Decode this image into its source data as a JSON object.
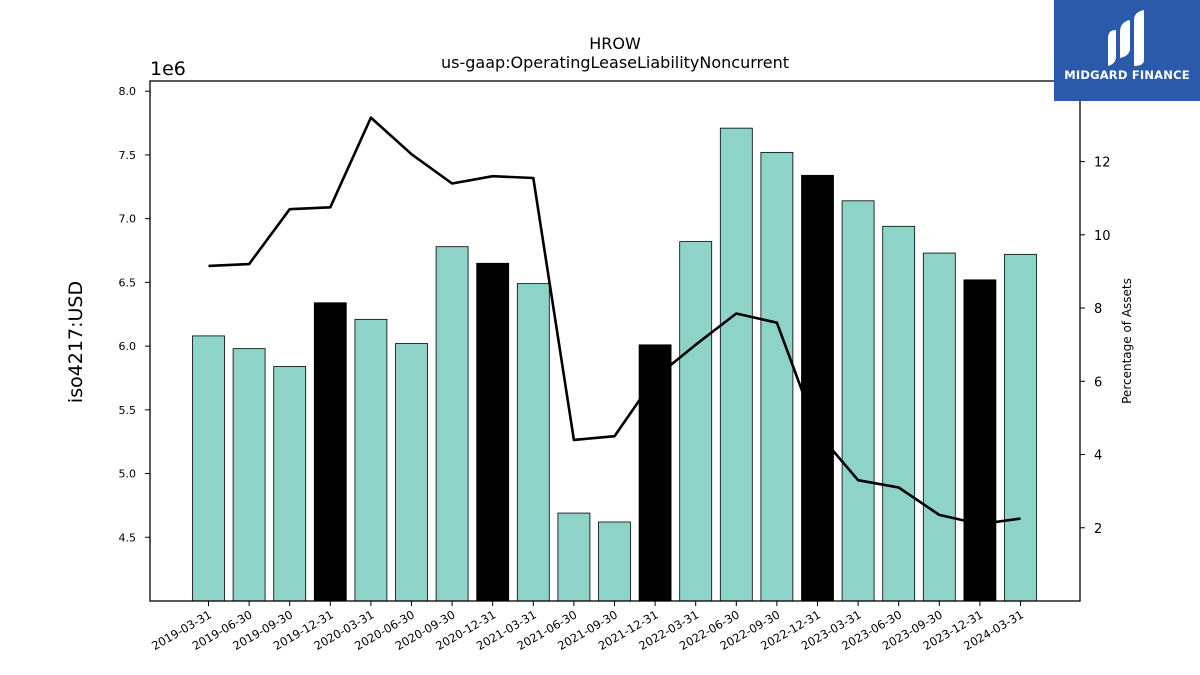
{
  "chart_data": {
    "type": "bar",
    "title": "HROW",
    "subtitle": "us-gaap:OperatingLeaseLiabilityNoncurrent",
    "ylabel": "iso4217:USD",
    "y_offset_label": "1e6",
    "y2label": "Percentage of Assets",
    "ylim": [
      4000000,
      8080000
    ],
    "y2lim": [
      0,
      14.2
    ],
    "yticks": [
      "4.5",
      "5.0",
      "5.5",
      "6.0",
      "6.5",
      "7.0",
      "7.5",
      "8.0"
    ],
    "y2ticks": [
      "2",
      "4",
      "6",
      "8",
      "10",
      "12"
    ],
    "grid": false,
    "categories": [
      "2019-03-31",
      "2019-06-30",
      "2019-09-30",
      "2019-12-31",
      "2020-03-31",
      "2020-06-30",
      "2020-09-30",
      "2020-12-31",
      "2021-03-31",
      "2021-06-30",
      "2021-09-30",
      "2021-12-31",
      "2022-03-31",
      "2022-06-30",
      "2022-09-30",
      "2022-12-31",
      "2023-03-31",
      "2023-06-30",
      "2023-09-30",
      "2023-12-31",
      "2024-03-31"
    ],
    "series": [
      {
        "type": "bar",
        "axis": "left",
        "values": [
          6080000,
          5980000,
          5840000,
          6340000,
          6210000,
          6020000,
          6780000,
          6650000,
          6490000,
          4690000,
          4620000,
          6010000,
          6820000,
          7710000,
          7520000,
          7340000,
          7140000,
          6940000,
          6730000,
          6520000,
          6720000
        ],
        "highlight": [
          false,
          false,
          false,
          true,
          false,
          false,
          false,
          true,
          false,
          false,
          false,
          true,
          false,
          false,
          false,
          true,
          false,
          false,
          false,
          true,
          false
        ],
        "color": "#8dd3c7",
        "highlight_color": "#000000"
      },
      {
        "type": "line",
        "axis": "right",
        "values": [
          9.15,
          9.2,
          10.7,
          10.75,
          13.2,
          12.2,
          11.4,
          11.6,
          11.55,
          4.4,
          4.5,
          6.1,
          7.0,
          7.85,
          7.6,
          4.6,
          3.3,
          3.1,
          2.35,
          2.1,
          2.25
        ],
        "color": "#000000"
      }
    ]
  },
  "logo": {
    "text": "MIDGARD FINANCE",
    "background": "#2c5aab"
  }
}
